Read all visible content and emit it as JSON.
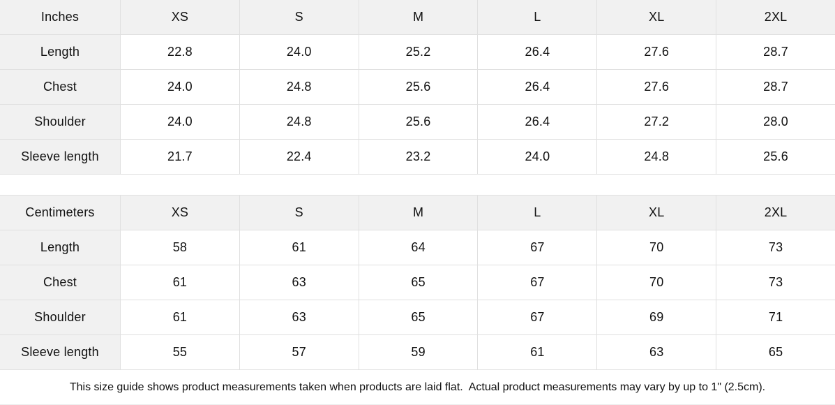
{
  "page": {
    "background_color": "#ffffff",
    "header_cell_color": "#f1f1f1",
    "border_color": "#e0e0e0",
    "text_color": "#111111"
  },
  "size_guide": {
    "tables": [
      {
        "unit_label": "Inches",
        "sizes": [
          "XS",
          "S",
          "M",
          "L",
          "XL",
          "2XL"
        ],
        "rows": [
          {
            "label": "Length",
            "values": [
              "22.8",
              "24.0",
              "25.2",
              "26.4",
              "27.6",
              "28.7"
            ]
          },
          {
            "label": "Chest",
            "values": [
              "24.0",
              "24.8",
              "25.6",
              "26.4",
              "27.6",
              "28.7"
            ]
          },
          {
            "label": "Shoulder",
            "values": [
              "24.0",
              "24.8",
              "25.6",
              "26.4",
              "27.2",
              "28.0"
            ]
          },
          {
            "label": "Sleeve length",
            "values": [
              "21.7",
              "22.4",
              "23.2",
              "24.0",
              "24.8",
              "25.6"
            ]
          }
        ]
      },
      {
        "unit_label": "Centimeters",
        "sizes": [
          "XS",
          "S",
          "M",
          "L",
          "XL",
          "2XL"
        ],
        "rows": [
          {
            "label": "Length",
            "values": [
              "58",
              "61",
              "64",
              "67",
              "70",
              "73"
            ]
          },
          {
            "label": "Chest",
            "values": [
              "61",
              "63",
              "65",
              "67",
              "70",
              "73"
            ]
          },
          {
            "label": "Shoulder",
            "values": [
              "61",
              "63",
              "65",
              "67",
              "69",
              "71"
            ]
          },
          {
            "label": "Sleeve length",
            "values": [
              "55",
              "57",
              "59",
              "61",
              "63",
              "65"
            ]
          }
        ]
      }
    ],
    "footnote": "This size guide shows product measurements taken when products are laid flat.  Actual product measurements may vary by up to 1\" (2.5cm)."
  }
}
